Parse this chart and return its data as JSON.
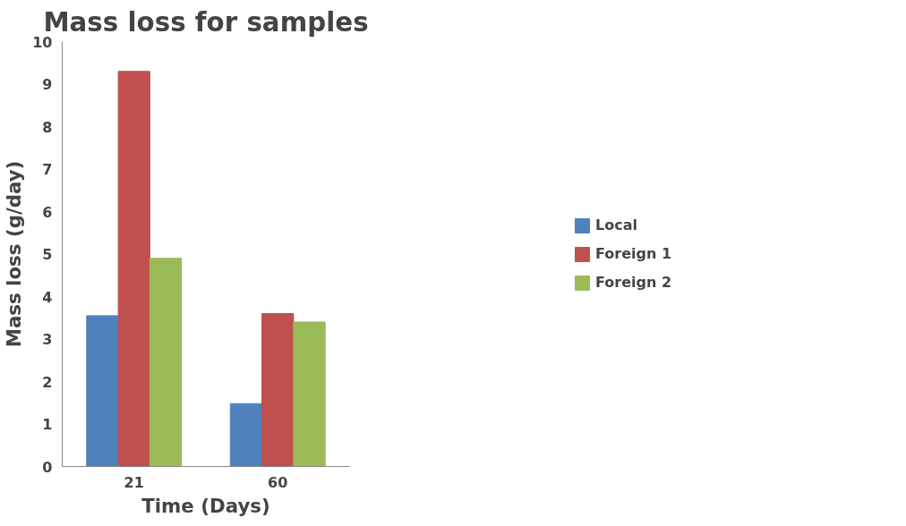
{
  "chart_data": {
    "type": "bar",
    "title": "Mass loss for samples",
    "xlabel": "Time (Days)",
    "ylabel": "Mass loss (g/day)",
    "categories": [
      "21",
      "60"
    ],
    "series": [
      {
        "name": "Local",
        "color": "#4f81bd",
        "values": [
          3.55,
          1.48
        ]
      },
      {
        "name": "Foreign 1",
        "color": "#c0504d",
        "values": [
          9.3,
          3.6
        ]
      },
      {
        "name": "Foreign 2",
        "color": "#9bbb59",
        "values": [
          4.9,
          3.4
        ]
      }
    ],
    "ylim": [
      0,
      10
    ],
    "yticks": [
      0,
      1,
      2,
      3,
      4,
      5,
      6,
      7,
      8,
      9,
      10
    ],
    "grid": false,
    "legend": "right"
  }
}
